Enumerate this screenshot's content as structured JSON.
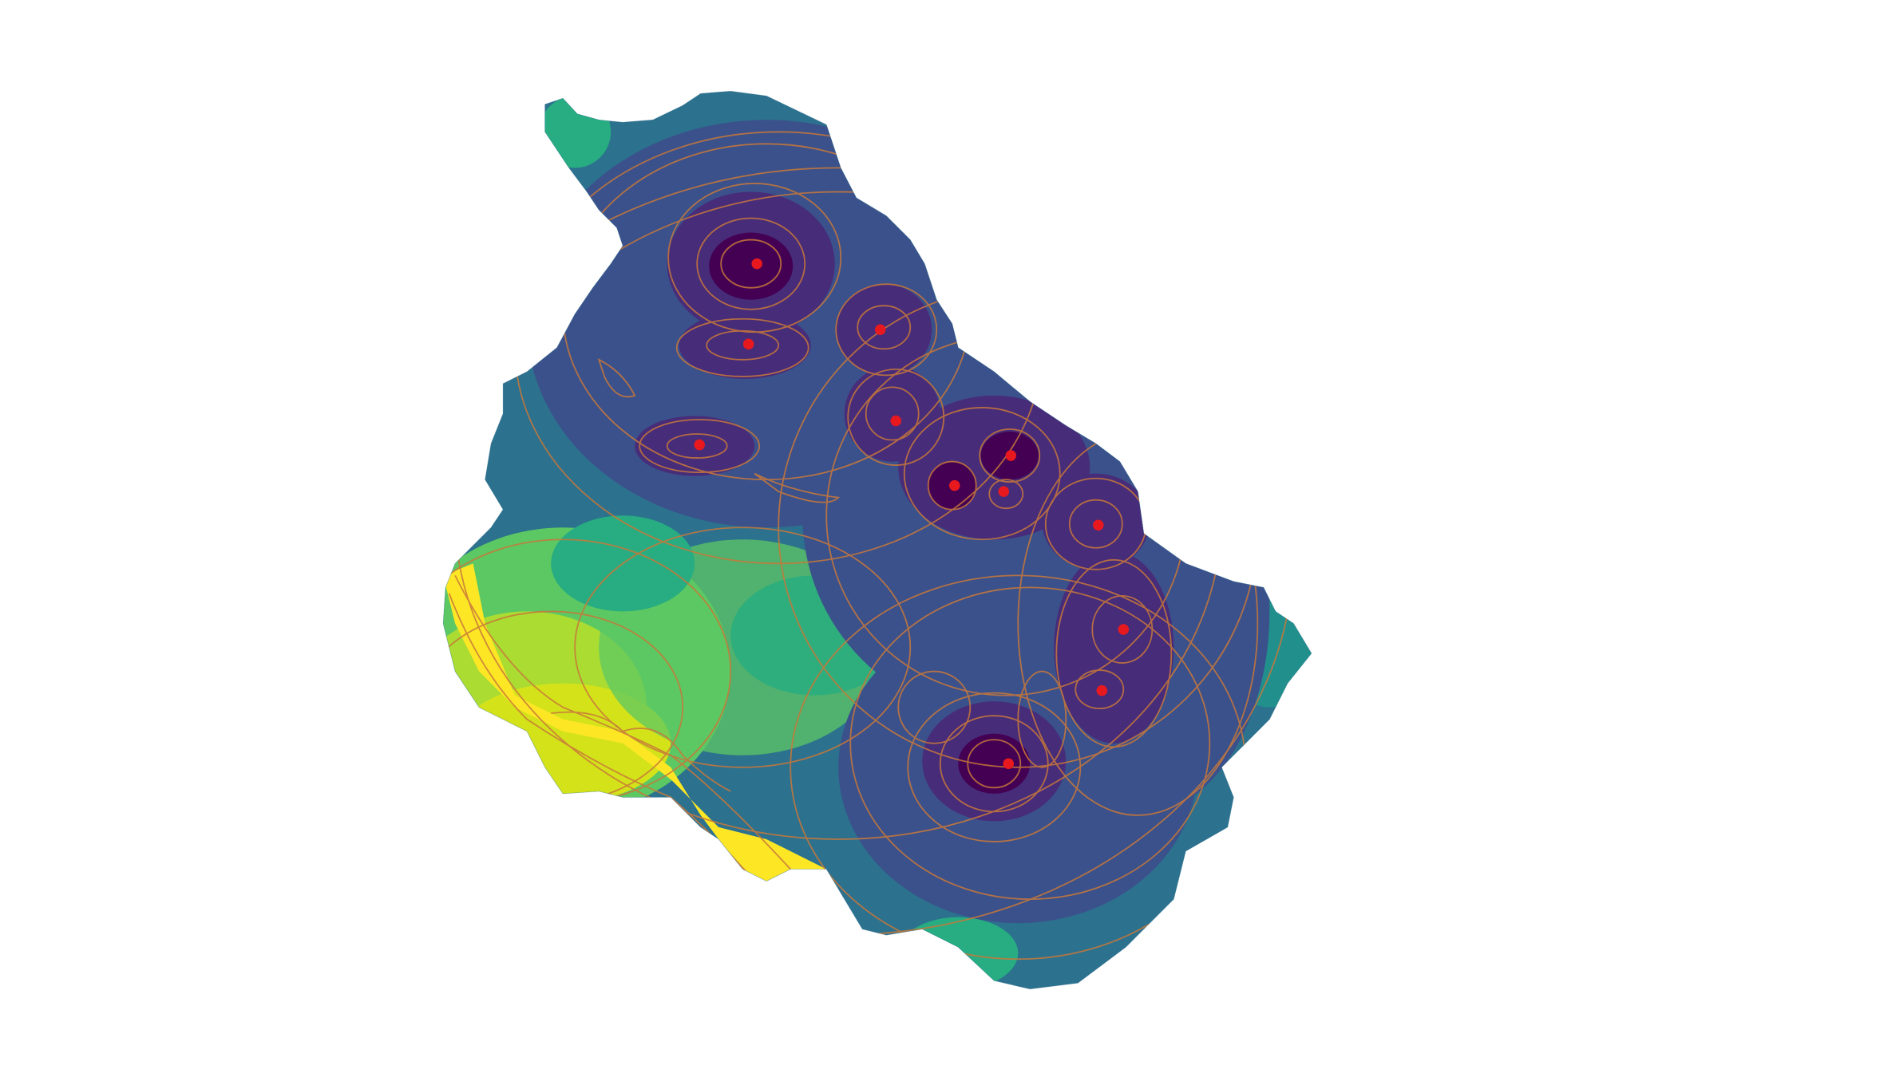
{
  "map": {
    "kind": "raster-heatmap-with-contours",
    "colormap": "viridis",
    "colormap_stops": [
      "#440154",
      "#472c7a",
      "#3b518b",
      "#2c718e",
      "#21908d",
      "#27ad81",
      "#5cc863",
      "#aadc32",
      "#fde725"
    ],
    "contour_color": "#c8783a",
    "marker_color": "#e8191e",
    "background": "#ffffff",
    "legend": "none",
    "labels": "none",
    "marker_count": 13
  }
}
